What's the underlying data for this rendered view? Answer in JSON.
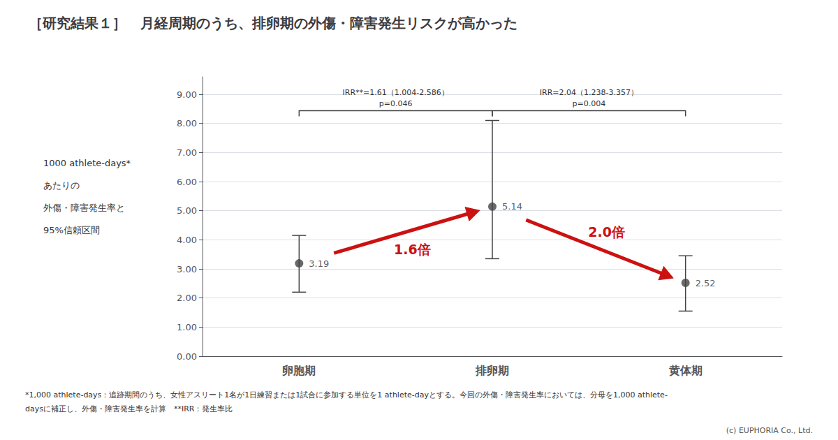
{
  "chart_data": {
    "type": "scatter",
    "title": "［研究結果１］　月経周期のうち、排卵期の外傷・障害発生リスクが高かった",
    "categories": [
      "卵胞期",
      "排卵期",
      "黄体期"
    ],
    "values": [
      3.19,
      5.14,
      2.52
    ],
    "ci_lower": [
      2.2,
      3.35,
      1.55
    ],
    "ci_upper": [
      4.15,
      8.1,
      3.45
    ],
    "color": "#444444",
    "data_labels": true,
    "grid": true,
    "ylabel": [
      "1000 athlete-days*",
      "あたりの",
      "外傷・障害発生率と",
      "95%信頼区間"
    ],
    "ylim": [
      0,
      9.6
    ],
    "yticks": [
      {
        "value": 0,
        "label": "0.00"
      },
      {
        "value": 1,
        "label": "1.00"
      },
      {
        "value": 2,
        "label": "2.00"
      },
      {
        "value": 3,
        "label": "3.00"
      },
      {
        "value": 4,
        "label": "4.00"
      },
      {
        "value": 5,
        "label": "5.00"
      },
      {
        "value": 6,
        "label": "6.00"
      },
      {
        "value": 7,
        "label": "7.00"
      },
      {
        "value": 8,
        "label": "8.00"
      },
      {
        "value": 9,
        "label": "9.00"
      }
    ],
    "comparisons": [
      {
        "from": "卵胞期",
        "to": "排卵期",
        "text": [
          "IRR**=1.61（1.004-2.586）",
          "p=0.046"
        ]
      },
      {
        "from": "排卵期",
        "to": "黄体期",
        "text": [
          "IRR=2.04（1.238-3.357）",
          "p=0.004"
        ]
      }
    ],
    "arrows": [
      {
        "from": "卵胞期",
        "to": "排卵期",
        "text": "1.6倍",
        "color": "#cc1111"
      },
      {
        "from": "排卵期",
        "to": "黄体期",
        "text": "2.0倍",
        "color": "#cc1111"
      }
    ],
    "footnotes": [
      "*1,000 athlete-days：追跡期間のうち、女性アスリート1名が1日練習または1試合に参加する単位を1 athlete-dayとする。今回の外傷・障害発生率においては、分母を1,000 athlete-",
      "daysに補正し、外傷・障害発生率を計算　**IRR：発生率比"
    ],
    "credit": "(c) EUPHORIA Co., Ltd."
  }
}
